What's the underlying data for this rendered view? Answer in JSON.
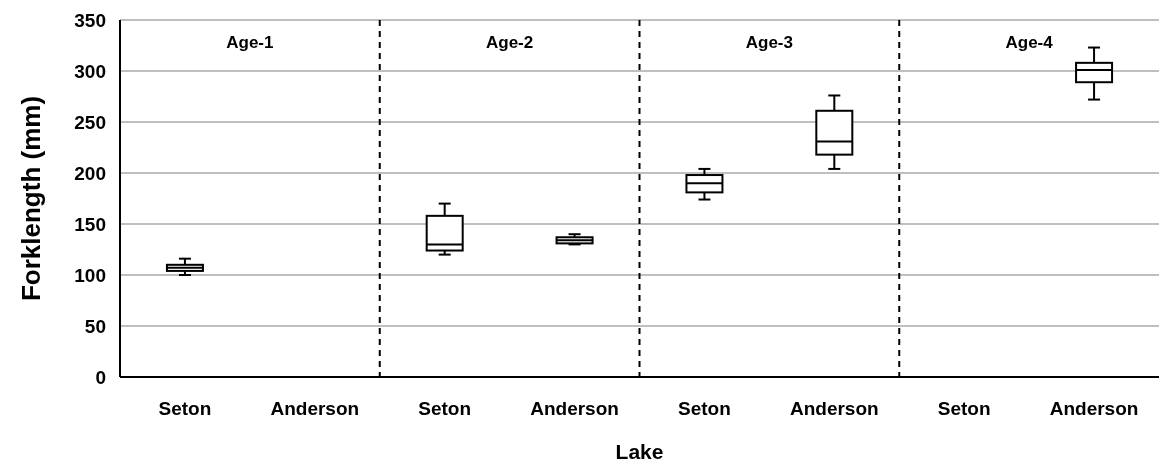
{
  "chart_data": {
    "type": "box",
    "xlabel": "Lake",
    "ylabel": "Forklength (mm)",
    "categories": [
      "Seton",
      "Anderson",
      "Seton",
      "Anderson",
      "Seton",
      "Anderson",
      "Seton",
      "Anderson"
    ],
    "boxes": [
      {
        "low": 100,
        "q1": 104,
        "median": 107,
        "q3": 110,
        "high": 116
      },
      null,
      {
        "low": 120,
        "q1": 124,
        "median": 130,
        "q3": 158,
        "high": 170
      },
      {
        "low": 130,
        "q1": 131,
        "median": 134,
        "q3": 137,
        "high": 140
      },
      {
        "low": 174,
        "q1": 181,
        "median": 190,
        "q3": 198,
        "high": 204
      },
      {
        "low": 204,
        "q1": 218,
        "median": 231,
        "q3": 261,
        "high": 276
      },
      null,
      {
        "low": 272,
        "q1": 289,
        "median": 301,
        "q3": 308,
        "high": 323
      }
    ],
    "annotations": [
      "Age-1",
      "Age-2",
      "Age-3",
      "Age-4"
    ],
    "ylim": [
      0,
      350
    ],
    "yticks": [
      0,
      50,
      100,
      150,
      200,
      250,
      300,
      350
    ],
    "grid": "y"
  }
}
